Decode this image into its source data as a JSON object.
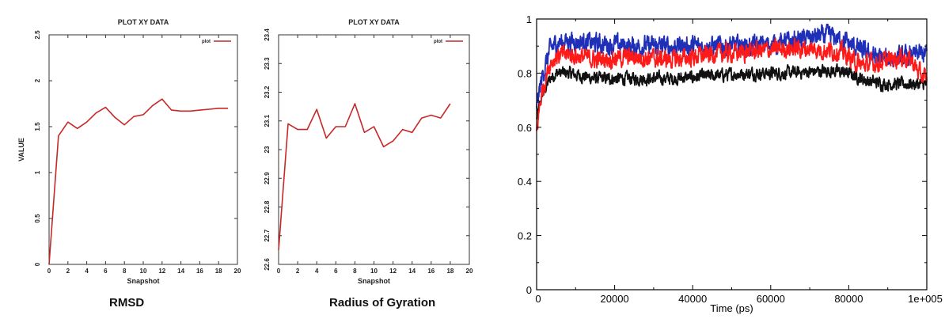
{
  "chart_data": [
    {
      "type": "line",
      "title": "PLOT XY DATA",
      "xlabel": "Snapshot",
      "ylabel": "VALUE",
      "caption": "RMSD",
      "xlim": [
        0,
        20
      ],
      "ylim": [
        0,
        2.5
      ],
      "xticks": [
        "0",
        "2",
        "4",
        "6",
        "8",
        "10",
        "12",
        "14",
        "16",
        "18",
        "20"
      ],
      "yticks": [
        "0",
        "0.5",
        "1",
        "1.5",
        "2",
        "2.5"
      ],
      "legend": "plot",
      "legend_position": "top-right",
      "series": [
        {
          "color": "#c62828",
          "x": [
            0,
            1,
            2,
            3,
            4,
            5,
            6,
            7,
            8,
            9,
            10,
            11,
            12,
            13,
            14,
            15,
            16,
            17,
            18,
            19
          ],
          "y": [
            0.0,
            1.4,
            1.55,
            1.48,
            1.55,
            1.65,
            1.71,
            1.6,
            1.52,
            1.61,
            1.63,
            1.73,
            1.8,
            1.68,
            1.67,
            1.67,
            1.68,
            1.69,
            1.7,
            1.7
          ]
        }
      ]
    },
    {
      "type": "line",
      "title": "PLOT XY DATA",
      "xlabel": "Snapshot",
      "ylabel": "",
      "caption": "Radius of Gyration",
      "xlim": [
        0,
        20
      ],
      "ylim": [
        22.6,
        23.4
      ],
      "xticks": [
        "0",
        "2",
        "4",
        "6",
        "8",
        "10",
        "12",
        "14",
        "16",
        "18",
        "20"
      ],
      "yticks": [
        "22.6",
        "22.7",
        "22.8",
        "22.9",
        "23",
        "23.1",
        "23.2",
        "23.3",
        "23.4"
      ],
      "legend": "plot",
      "legend_position": "top-right",
      "series": [
        {
          "color": "#c62828",
          "x": [
            0,
            1,
            2,
            3,
            4,
            5,
            6,
            7,
            8,
            9,
            10,
            11,
            12,
            13,
            14,
            15,
            16,
            17,
            18
          ],
          "y": [
            22.65,
            23.09,
            23.07,
            23.07,
            23.14,
            23.04,
            23.08,
            23.08,
            23.16,
            23.06,
            23.08,
            23.01,
            23.03,
            23.07,
            23.06,
            23.11,
            23.12,
            23.11,
            23.16
          ]
        }
      ]
    },
    {
      "type": "line",
      "title": "",
      "xlabel": "Time (ps)",
      "ylabel": "",
      "xlim": [
        0,
        100000
      ],
      "ylim": [
        0,
        1
      ],
      "xticks": [
        "0",
        "20000",
        "40000",
        "60000",
        "80000",
        "1e+005"
      ],
      "yticks": [
        "0",
        "0.2",
        "0.4",
        "0.6",
        "0.8",
        "1"
      ],
      "series": [
        {
          "color": "#1f2fb8",
          "anchors_x": [
            0,
            800,
            1500,
            2500,
            3500,
            5000,
            8000,
            15000,
            25000,
            35000,
            45000,
            55000,
            62000,
            70000,
            75000,
            80000,
            85000,
            90000,
            95000,
            98000,
            100000
          ],
          "anchors_y": [
            0.68,
            0.74,
            0.79,
            0.84,
            0.89,
            0.91,
            0.92,
            0.91,
            0.9,
            0.9,
            0.9,
            0.9,
            0.91,
            0.93,
            0.94,
            0.91,
            0.87,
            0.85,
            0.86,
            0.87,
            0.87
          ],
          "noise": 0.028
        },
        {
          "color": "#ff1a1a",
          "anchors_x": [
            0,
            800,
            1500,
            2500,
            3500,
            5000,
            8000,
            15000,
            25000,
            35000,
            45000,
            55000,
            62000,
            70000,
            78000,
            83000,
            88000,
            93000,
            96000,
            98500,
            100000
          ],
          "anchors_y": [
            0.58,
            0.68,
            0.74,
            0.79,
            0.84,
            0.86,
            0.87,
            0.85,
            0.86,
            0.85,
            0.87,
            0.88,
            0.89,
            0.89,
            0.88,
            0.83,
            0.84,
            0.86,
            0.85,
            0.79,
            0.78
          ],
          "noise": 0.026
        },
        {
          "color": "#111111",
          "anchors_x": [
            0,
            800,
            1500,
            2500,
            3500,
            5000,
            8000,
            15000,
            25000,
            35000,
            45000,
            55000,
            65000,
            75000,
            80000,
            85000,
            90000,
            95000,
            100000
          ],
          "anchors_y": [
            0.63,
            0.68,
            0.72,
            0.75,
            0.78,
            0.8,
            0.8,
            0.78,
            0.78,
            0.78,
            0.79,
            0.8,
            0.8,
            0.81,
            0.8,
            0.77,
            0.76,
            0.76,
            0.76
          ],
          "noise": 0.018
        }
      ]
    }
  ]
}
